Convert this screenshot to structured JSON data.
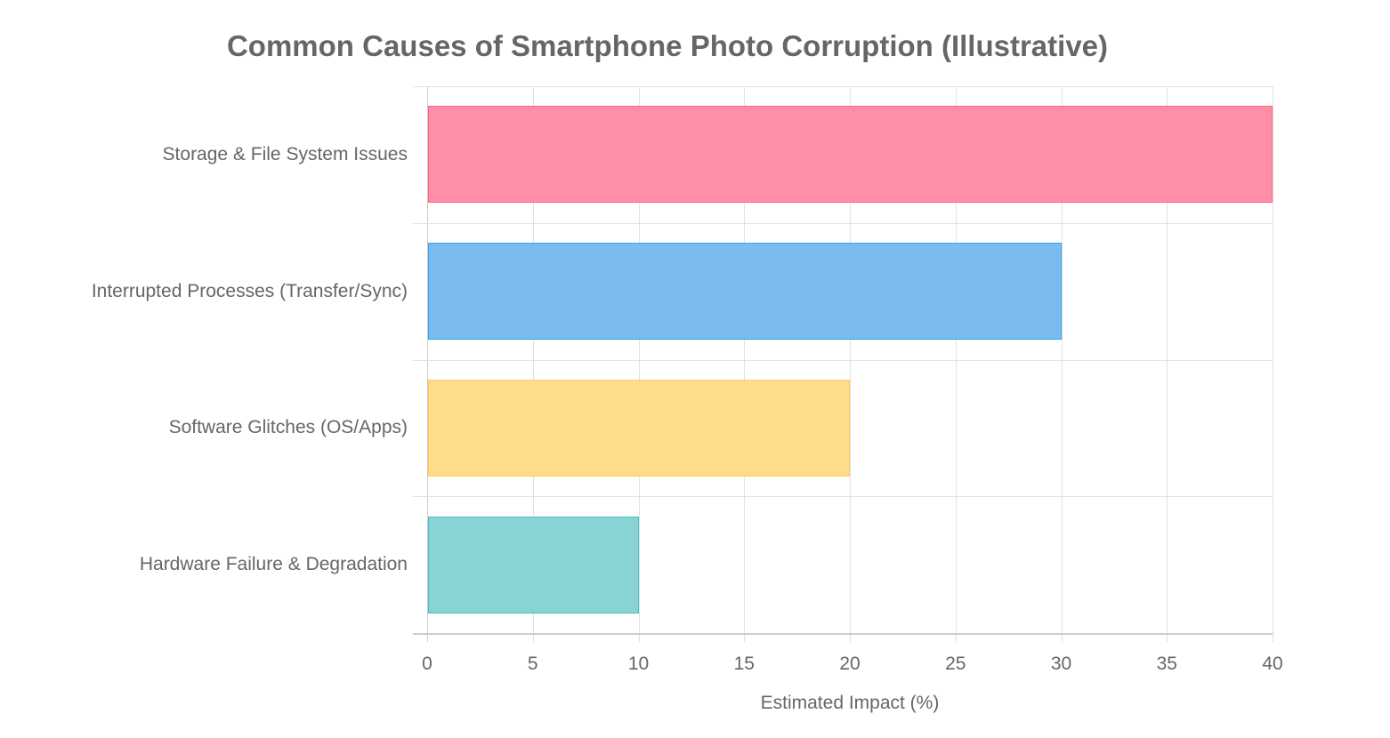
{
  "chart_data": {
    "type": "bar",
    "orientation": "horizontal",
    "title": "Common Causes of Smartphone Photo Corruption (Illustrative)",
    "categories": [
      "Storage & File System Issues",
      "Interrupted Processes (Transfer/Sync)",
      "Software Glitches (OS/Apps)",
      "Hardware Failure & Degradation"
    ],
    "values": [
      40,
      30,
      20,
      10
    ],
    "colors": [
      {
        "fill": "#ff8fa6",
        "border": "#ff6384"
      },
      {
        "fill": "#7abcf0",
        "border": "#36a2eb"
      },
      {
        "fill": "#ffdc8c",
        "border": "#ffcd56"
      },
      {
        "fill": "#88d3d3",
        "border": "#4bc0c0"
      }
    ],
    "xlabel": "Estimated Impact (%)",
    "ylabel": "",
    "xlim": [
      0,
      40
    ],
    "xticks": [
      "0",
      "5",
      "10",
      "15",
      "20",
      "25",
      "30",
      "35",
      "40"
    ],
    "grid": true,
    "legend": "none"
  }
}
